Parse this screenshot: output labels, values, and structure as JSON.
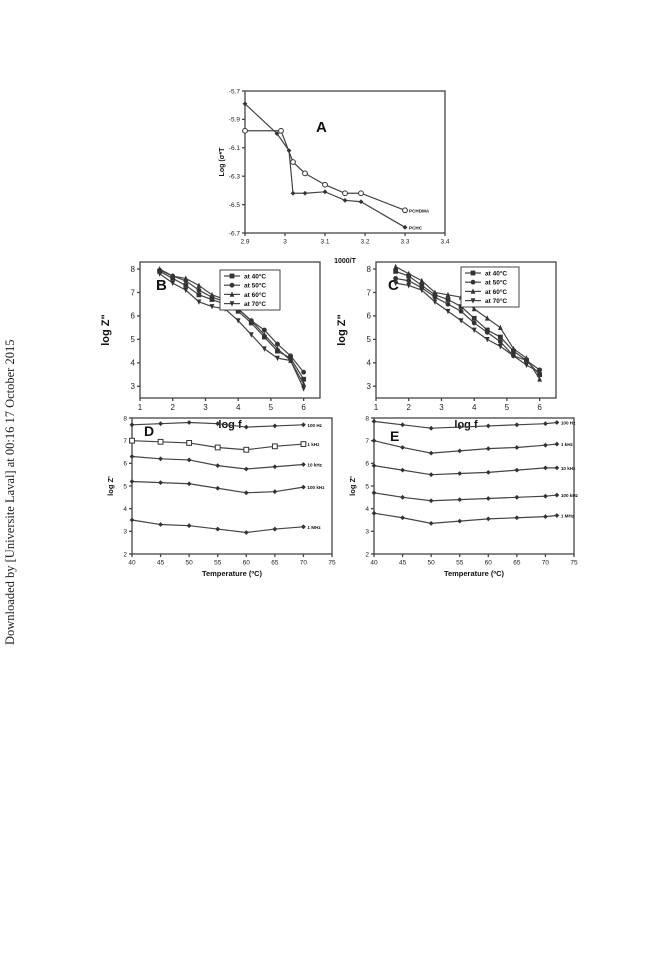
{
  "watermark": "Downloaded by [Universite Laval] at 00:16 17 October 2015",
  "chart_data": [
    {
      "panel": "A",
      "type": "line",
      "xlabel": "1000/T",
      "ylabel": "Log (σ*T",
      "xlim": [
        2.9,
        3.4
      ],
      "ylim": [
        -6.7,
        -5.7
      ],
      "xticks": [
        "2.9",
        "3",
        "3.1",
        "3.2",
        "3.3",
        "3.4"
      ],
      "yticks": [
        "-5.7",
        "-5.9",
        "-6.1",
        "-6.3",
        "-6.5",
        "-6.7"
      ],
      "series": [
        {
          "name": "PCHDMA",
          "marker": "circle-open",
          "x": [
            2.9,
            2.99,
            3.02,
            3.05,
            3.1,
            3.15,
            3.19,
            3.3
          ],
          "y": [
            -5.98,
            -5.98,
            -6.2,
            -6.28,
            -6.36,
            -6.42,
            -6.42,
            -6.54
          ]
        },
        {
          "name": "PCHC",
          "marker": "diamond",
          "x": [
            2.9,
            2.98,
            3.01,
            3.02,
            3.05,
            3.1,
            3.15,
            3.19,
            3.3
          ],
          "y": [
            -5.79,
            -6.0,
            -6.12,
            -6.42,
            -6.42,
            -6.41,
            -6.47,
            -6.48,
            -6.66
          ]
        }
      ]
    },
    {
      "panel": "B",
      "type": "line",
      "xlabel": "log f",
      "ylabel": "log Z\"",
      "xlim": [
        1,
        6.5
      ],
      "ylim": [
        2.5,
        8.3
      ],
      "xticks": [
        "1",
        "2",
        "3",
        "4",
        "5",
        "6"
      ],
      "yticks": [
        "3",
        "4",
        "5",
        "6",
        "7",
        "8"
      ],
      "legend": "top-right",
      "series": [
        {
          "name": "at 40°C",
          "marker": "square",
          "x": [
            1.6,
            2.0,
            2.4,
            2.8,
            3.2,
            3.6,
            4.0,
            4.4,
            4.8,
            5.2,
            5.6,
            6.0
          ],
          "y": [
            7.9,
            7.6,
            7.3,
            6.9,
            6.7,
            6.5,
            6.2,
            5.7,
            5.1,
            4.5,
            4.2,
            3.3
          ]
        },
        {
          "name": "at 50°C",
          "marker": "circle",
          "x": [
            1.6,
            2.0,
            2.4,
            2.8,
            3.2,
            3.6,
            4.0,
            4.4,
            4.8,
            5.2,
            5.6,
            6.0
          ],
          "y": [
            7.95,
            7.7,
            7.5,
            7.1,
            6.8,
            6.6,
            6.3,
            5.8,
            5.4,
            4.8,
            4.3,
            3.6
          ]
        },
        {
          "name": "at 60°C",
          "marker": "triangle-up",
          "x": [
            1.6,
            2.0,
            2.4,
            2.8,
            3.2,
            3.6,
            4.0,
            4.4,
            4.8,
            5.2,
            5.6,
            6.0
          ],
          "y": [
            8.0,
            7.7,
            7.6,
            7.3,
            6.9,
            6.7,
            6.3,
            5.8,
            5.2,
            4.6,
            4.1,
            3.1
          ]
        },
        {
          "name": "at 70°C",
          "marker": "triangle-down",
          "x": [
            1.6,
            2.0,
            2.4,
            2.8,
            3.2,
            3.6,
            4.0,
            4.4,
            4.8,
            5.2,
            5.6,
            6.0
          ],
          "y": [
            7.8,
            7.4,
            7.1,
            6.6,
            6.4,
            6.3,
            5.8,
            5.2,
            4.6,
            4.2,
            4.1,
            2.9
          ]
        }
      ]
    },
    {
      "panel": "C",
      "type": "line",
      "xlabel": "log f",
      "ylabel": "log Z\"",
      "xlim": [
        1,
        6.5
      ],
      "ylim": [
        2.5,
        8.3
      ],
      "xticks": [
        "1",
        "2",
        "3",
        "4",
        "5",
        "6"
      ],
      "yticks": [
        "3",
        "4",
        "5",
        "6",
        "7",
        "8"
      ],
      "legend": "top-right",
      "series": [
        {
          "name": "at 40°C",
          "marker": "square",
          "x": [
            1.6,
            2.0,
            2.4,
            2.8,
            3.2,
            3.6,
            4.0,
            4.4,
            4.8,
            5.2,
            5.6,
            6.0
          ],
          "y": [
            7.9,
            7.7,
            7.3,
            6.9,
            6.7,
            6.4,
            5.9,
            5.4,
            5.1,
            4.5,
            4.1,
            3.5
          ]
        },
        {
          "name": "at 50°C",
          "marker": "circle",
          "x": [
            1.6,
            2.0,
            2.4,
            2.8,
            3.2,
            3.6,
            4.0,
            4.4,
            4.8,
            5.2,
            5.6,
            6.0
          ],
          "y": [
            7.6,
            7.5,
            7.2,
            6.8,
            6.5,
            6.2,
            5.7,
            5.3,
            4.9,
            4.3,
            4.1,
            3.7
          ]
        },
        {
          "name": "at 60°C",
          "marker": "triangle-up",
          "x": [
            1.6,
            2.0,
            2.4,
            2.8,
            3.2,
            3.6,
            4.0,
            4.4,
            4.8,
            5.2,
            5.6,
            6.0
          ],
          "y": [
            8.1,
            7.8,
            7.5,
            7.0,
            6.9,
            6.8,
            6.3,
            5.9,
            5.5,
            4.6,
            4.2,
            3.3
          ]
        },
        {
          "name": "at 70°C",
          "marker": "triangle-down",
          "x": [
            1.6,
            2.0,
            2.4,
            2.8,
            3.2,
            3.6,
            4.0,
            4.4,
            4.8,
            5.2,
            5.6,
            6.0
          ],
          "y": [
            7.4,
            7.3,
            7.1,
            6.6,
            6.2,
            5.8,
            5.4,
            5.0,
            4.7,
            4.3,
            3.9,
            3.6
          ]
        }
      ]
    },
    {
      "panel": "D",
      "type": "line",
      "xlabel": "Temperature (ºC)",
      "ylabel": "log Z'",
      "xlim": [
        40,
        75
      ],
      "ylim": [
        2,
        8
      ],
      "xticks": [
        "40",
        "45",
        "50",
        "55",
        "60",
        "65",
        "70",
        "75"
      ],
      "yticks": [
        "2",
        "3",
        "4",
        "5",
        "6",
        "7",
        "8"
      ],
      "series": [
        {
          "name": "100 Hz",
          "marker": "diamond",
          "x": [
            40,
            45,
            50,
            55,
            60,
            65,
            70
          ],
          "y": [
            7.7,
            7.75,
            7.8,
            7.75,
            7.6,
            7.65,
            7.7
          ]
        },
        {
          "name": "1 kHz",
          "marker": "square-open",
          "x": [
            40,
            45,
            50,
            55,
            60,
            65,
            70
          ],
          "y": [
            7.0,
            6.95,
            6.9,
            6.7,
            6.6,
            6.75,
            6.85
          ]
        },
        {
          "name": "10 kHz",
          "marker": "diamond",
          "x": [
            40,
            45,
            50,
            55,
            60,
            65,
            70
          ],
          "y": [
            6.3,
            6.2,
            6.15,
            5.9,
            5.75,
            5.85,
            5.95
          ]
        },
        {
          "name": "100 kHz",
          "marker": "diamond",
          "x": [
            40,
            45,
            50,
            55,
            60,
            65,
            70
          ],
          "y": [
            5.2,
            5.15,
            5.1,
            4.9,
            4.7,
            4.75,
            4.95
          ]
        },
        {
          "name": "1 MHz",
          "marker": "diamond",
          "x": [
            40,
            45,
            50,
            55,
            60,
            65,
            70
          ],
          "y": [
            3.5,
            3.3,
            3.25,
            3.1,
            2.95,
            3.1,
            3.2
          ]
        }
      ]
    },
    {
      "panel": "E",
      "type": "line",
      "xlabel": "Temperature (ºC)",
      "ylabel": "log Z'",
      "xlim": [
        40,
        75
      ],
      "ylim": [
        2,
        8
      ],
      "xticks": [
        "40",
        "45",
        "50",
        "55",
        "60",
        "65",
        "70",
        "75"
      ],
      "yticks": [
        "2",
        "3",
        "4",
        "5",
        "6",
        "7",
        "8"
      ],
      "series": [
        {
          "name": "100 Hz",
          "marker": "diamond",
          "x": [
            40,
            45,
            50,
            55,
            60,
            65,
            70,
            72
          ],
          "y": [
            7.85,
            7.7,
            7.55,
            7.6,
            7.65,
            7.7,
            7.75,
            7.8
          ]
        },
        {
          "name": "1 kHz",
          "marker": "diamond",
          "x": [
            40,
            45,
            50,
            55,
            60,
            65,
            70,
            72
          ],
          "y": [
            7.0,
            6.7,
            6.45,
            6.55,
            6.65,
            6.7,
            6.8,
            6.85
          ]
        },
        {
          "name": "10 kHz",
          "marker": "diamond",
          "x": [
            40,
            45,
            50,
            55,
            60,
            65,
            70,
            72
          ],
          "y": [
            5.9,
            5.7,
            5.5,
            5.55,
            5.6,
            5.7,
            5.8,
            5.8
          ]
        },
        {
          "name": "100 kHz",
          "marker": "diamond",
          "x": [
            40,
            45,
            50,
            55,
            60,
            65,
            70,
            72
          ],
          "y": [
            4.7,
            4.5,
            4.35,
            4.4,
            4.45,
            4.5,
            4.55,
            4.6
          ]
        },
        {
          "name": "1 MHz",
          "marker": "diamond",
          "x": [
            40,
            45,
            50,
            55,
            60,
            65,
            70,
            72
          ],
          "y": [
            3.8,
            3.6,
            3.35,
            3.45,
            3.55,
            3.6,
            3.65,
            3.7
          ]
        }
      ]
    }
  ]
}
